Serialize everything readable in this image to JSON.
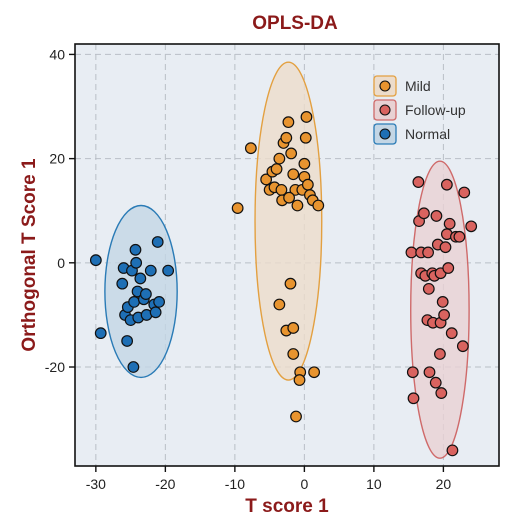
{
  "chart_data": {
    "type": "scatter",
    "title": "OPLS-DA",
    "xlabel": "T score 1",
    "ylabel": "Orthogonal T Score 1",
    "xlim": [
      -33,
      28
    ],
    "ylim": [
      -39,
      42
    ],
    "xticks": [
      "-30",
      "-20",
      "-10",
      "0",
      "10",
      "20"
    ],
    "xtick_values": [
      -30,
      -20,
      -10,
      0,
      10,
      20
    ],
    "yticks": [
      "-20",
      "0",
      "20",
      "40"
    ],
    "ytick_values": [
      -20,
      0,
      20,
      40
    ],
    "grid": true,
    "legend_position": "top-right",
    "background_color": "#e8edf3",
    "series": [
      {
        "name": "Mild",
        "color": "#e8942f",
        "ellipse_fill": "#ecdccb",
        "ellipse_stroke": "#e3a040",
        "ellipse": {
          "cx": -2.3,
          "cy": 8,
          "rx": 4.8,
          "ry": 30.5
        },
        "points": [
          [
            -7.7,
            22
          ],
          [
            -5.5,
            16
          ],
          [
            -5.0,
            14
          ],
          [
            -4.6,
            17.5
          ],
          [
            -4.3,
            14.5
          ],
          [
            -4.0,
            18
          ],
          [
            -3.6,
            20
          ],
          [
            -3.3,
            14
          ],
          [
            -3.0,
            23
          ],
          [
            -2.6,
            24
          ],
          [
            -2.3,
            27
          ],
          [
            -1.9,
            21
          ],
          [
            -1.6,
            17
          ],
          [
            -1.3,
            14
          ],
          [
            -3.2,
            12
          ],
          [
            -2.2,
            12.5
          ],
          [
            -1.0,
            11
          ],
          [
            -0.3,
            14
          ],
          [
            0.0,
            19
          ],
          [
            0.2,
            24
          ],
          [
            0.3,
            28
          ],
          [
            0.0,
            16.5
          ],
          [
            0.5,
            15
          ],
          [
            0.8,
            13
          ],
          [
            1.2,
            12
          ],
          [
            2.0,
            11
          ],
          [
            -9.6,
            10.5
          ],
          [
            -3.6,
            -8
          ],
          [
            -2.0,
            -4
          ],
          [
            -2.6,
            -13
          ],
          [
            -1.6,
            -12.5
          ],
          [
            -1.6,
            -17.5
          ],
          [
            -0.6,
            -21
          ],
          [
            -0.7,
            -22.5
          ],
          [
            1.4,
            -21
          ],
          [
            -1.2,
            -29.5
          ]
        ]
      },
      {
        "name": "Follow-up",
        "color": "#d9635f",
        "ellipse_fill": "#e8d1d3",
        "ellipse_stroke": "#cf6a6a",
        "ellipse": {
          "cx": 19.5,
          "cy": -9,
          "rx": 4.2,
          "ry": 28.5
        },
        "points": [
          [
            15.4,
            2
          ],
          [
            15.6,
            -21
          ],
          [
            15.7,
            -26
          ],
          [
            16.4,
            15.5
          ],
          [
            16.5,
            8
          ],
          [
            16.8,
            -2
          ],
          [
            16.8,
            2
          ],
          [
            17.2,
            9.5
          ],
          [
            17.4,
            -2.5
          ],
          [
            17.7,
            -11
          ],
          [
            17.8,
            2
          ],
          [
            17.9,
            -5
          ],
          [
            18.0,
            -21
          ],
          [
            18.4,
            -2
          ],
          [
            18.5,
            -11.5
          ],
          [
            18.7,
            -2.5
          ],
          [
            18.9,
            -23
          ],
          [
            19.0,
            9
          ],
          [
            19.2,
            3.5
          ],
          [
            19.5,
            -17.5
          ],
          [
            19.6,
            -2
          ],
          [
            19.6,
            -11.5
          ],
          [
            19.7,
            -25
          ],
          [
            19.9,
            -7.5
          ],
          [
            20.1,
            -10
          ],
          [
            20.3,
            3
          ],
          [
            20.5,
            15
          ],
          [
            20.5,
            5.5
          ],
          [
            20.7,
            -1
          ],
          [
            20.9,
            7.5
          ],
          [
            21.2,
            -13.5
          ],
          [
            21.3,
            -36
          ],
          [
            21.8,
            5
          ],
          [
            22.3,
            5
          ],
          [
            22.8,
            -16
          ],
          [
            23.0,
            13.5
          ],
          [
            24.0,
            7
          ]
        ]
      },
      {
        "name": "Normal",
        "color": "#1e6fb5",
        "ellipse_fill": "#c3d6e5",
        "ellipse_stroke": "#2a7bb6",
        "ellipse": {
          "cx": -23.5,
          "cy": -5.5,
          "rx": 5.2,
          "ry": 16.5
        },
        "points": [
          [
            -30.0,
            0.5
          ],
          [
            -29.3,
            -13.5
          ],
          [
            -26.2,
            -4
          ],
          [
            -26.0,
            -1
          ],
          [
            -25.8,
            -10
          ],
          [
            -25.5,
            -15
          ],
          [
            -25.4,
            -8.5
          ],
          [
            -25.0,
            -11
          ],
          [
            -24.8,
            -1.5
          ],
          [
            -24.6,
            -20
          ],
          [
            -24.5,
            -7.5
          ],
          [
            -24.3,
            2.5
          ],
          [
            -24.2,
            0
          ],
          [
            -24.0,
            -5.5
          ],
          [
            -23.9,
            -10.5
          ],
          [
            -23.6,
            -3
          ],
          [
            -23.1,
            -7
          ],
          [
            -22.8,
            -6
          ],
          [
            -22.7,
            -10
          ],
          [
            -22.1,
            -1.5
          ],
          [
            -21.6,
            -8
          ],
          [
            -21.4,
            -9.5
          ],
          [
            -21.1,
            4
          ],
          [
            -20.9,
            -7.5
          ],
          [
            -19.6,
            -1.5
          ]
        ]
      }
    ]
  }
}
